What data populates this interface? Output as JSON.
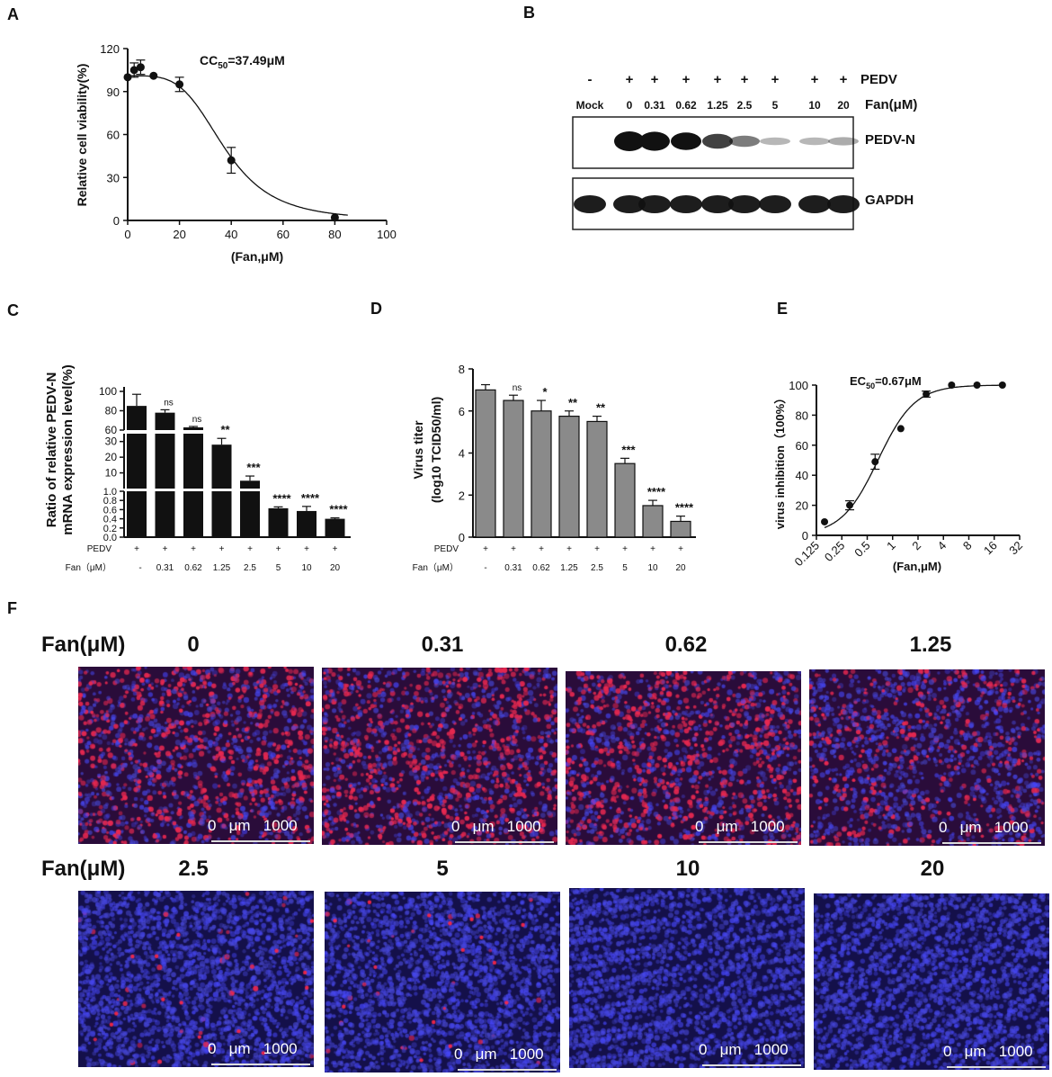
{
  "panels": {
    "A": "A",
    "B": "B",
    "C": "C",
    "D": "D",
    "E": "E",
    "F": "F"
  },
  "chart_data": [
    {
      "panel": "A",
      "type": "scatter",
      "annotation": "CC50=37.49μM",
      "annotation_main": "CC",
      "annotation_sub": "50",
      "annotation_rest": "=37.49μM",
      "xlabel": "(Fan,μM)",
      "ylabel": "Relative cell viability(%)",
      "xlim": [
        0,
        100
      ],
      "ylim": [
        0,
        120
      ],
      "xticks": [
        "0",
        "20",
        "40",
        "60",
        "80",
        "100"
      ],
      "yticks": [
        "0",
        "30",
        "60",
        "90",
        "120"
      ],
      "points": [
        {
          "x": 0,
          "y": 100,
          "err": 0
        },
        {
          "x": 2.5,
          "y": 105,
          "err": 5
        },
        {
          "x": 5,
          "y": 107,
          "err": 5
        },
        {
          "x": 10,
          "y": 101,
          "err": 0
        },
        {
          "x": 20,
          "y": 95,
          "err": 5
        },
        {
          "x": 40,
          "y": 42,
          "err": 9
        },
        {
          "x": 80,
          "y": 2,
          "err": 0
        }
      ],
      "fit": {
        "top": 101,
        "bottom": 0,
        "ic50": 37.49,
        "hill": 4
      }
    },
    {
      "panel": "B",
      "type": "table",
      "row1_label": "PEDV",
      "row2_label": "Fan(μM)",
      "row1_values": [
        "-",
        "+",
        "+",
        "+",
        "+",
        "+",
        "+",
        "+",
        "+"
      ],
      "row2_values": [
        "Mock",
        "0",
        "0.31",
        "0.62",
        "1.25",
        "2.5",
        "5",
        "10",
        "20"
      ],
      "blot1_label": "PEDV-N",
      "blot2_label": "GAPDH",
      "band1_intensity": [
        0,
        1.0,
        0.95,
        0.85,
        0.65,
        0.4,
        0.15,
        0.15,
        0.2
      ],
      "band2_intensity": [
        1,
        1,
        1,
        1,
        1,
        1,
        1,
        1,
        1
      ]
    },
    {
      "panel": "C",
      "type": "bar",
      "ylabel_line1": "Ratio of relative PEDV-N",
      "ylabel_line2": "mRNA expression level(%)",
      "categories": [
        "-",
        "0.31",
        "0.62",
        "1.25",
        "2.5",
        "5",
        "10",
        "20"
      ],
      "pedv": [
        "+",
        "+",
        "+",
        "+",
        "+",
        "+",
        "+",
        "+"
      ],
      "row1_label": "PEDV",
      "row2_label": "Fan（μM）",
      "values": [
        85,
        78,
        50,
        28,
        5,
        0.63,
        0.57,
        0.4
      ],
      "errors": [
        12,
        3,
        5,
        4,
        3,
        0.03,
        0.1,
        0.02
      ],
      "significance": [
        "",
        "ns",
        "ns",
        "**",
        "***",
        "****",
        "****",
        "****"
      ],
      "yticks_top": [
        "60",
        "80",
        "100"
      ],
      "yticks_mid": [
        "10",
        "20",
        "30"
      ],
      "yticks_bot": [
        "0.0",
        "0.2",
        "0.4",
        "0.6",
        "0.8",
        "1.0"
      ]
    },
    {
      "panel": "D",
      "type": "bar",
      "ylabel_line1": "Virus titer",
      "ylabel_line2": "(log10 TCID50/ml)",
      "categories": [
        "-",
        "0.31",
        "0.62",
        "1.25",
        "2.5",
        "5",
        "10",
        "20"
      ],
      "pedv": [
        "+",
        "+",
        "+",
        "+",
        "+",
        "+",
        "+",
        "+"
      ],
      "row1_label": "PEDV",
      "row2_label": "Fan（μM）",
      "values": [
        7.0,
        6.5,
        6.0,
        5.75,
        5.5,
        3.5,
        1.5,
        0.75
      ],
      "errors": [
        0.25,
        0.25,
        0.5,
        0.25,
        0.25,
        0.25,
        0.25,
        0.25
      ],
      "significance": [
        "",
        "ns",
        "*",
        "**",
        "**",
        "***",
        "****",
        "****"
      ],
      "ylim": [
        0,
        8
      ],
      "yticks": [
        "0",
        "2",
        "4",
        "6",
        "8"
      ]
    },
    {
      "panel": "E",
      "type": "scatter",
      "annotation_main": "EC",
      "annotation_sub": "50",
      "annotation_rest": "=0.67μM",
      "xlabel": "(Fan,μM)",
      "ylabel": "virus inhibition（100%）",
      "x_scale": "log2",
      "xticks": [
        "0.125",
        "0.25",
        "0.5",
        "1",
        "2",
        "4",
        "8",
        "16",
        "32"
      ],
      "yticks": [
        "0",
        "20",
        "40",
        "60",
        "80",
        "100"
      ],
      "ylim": [
        0,
        100
      ],
      "points": [
        {
          "x": 0.156,
          "y": 9,
          "err": 0
        },
        {
          "x": 0.31,
          "y": 20,
          "err": 3
        },
        {
          "x": 0.62,
          "y": 49,
          "err": 5
        },
        {
          "x": 1.25,
          "y": 71,
          "err": 0
        },
        {
          "x": 2.5,
          "y": 94,
          "err": 2
        },
        {
          "x": 5,
          "y": 100,
          "err": 0
        },
        {
          "x": 10,
          "y": 100,
          "err": 0
        },
        {
          "x": 20,
          "y": 100,
          "err": 0
        }
      ],
      "fit": {
        "top": 100,
        "bottom": 0,
        "ec50": 0.67,
        "hill": 2
      }
    }
  ],
  "micrographs": {
    "row_label": "Fan(μM)",
    "scale_text": [
      "0",
      "μm",
      "1000"
    ],
    "doses": [
      "0",
      "0.31",
      "0.62",
      "1.25",
      "2.5",
      "5",
      "10",
      "20"
    ],
    "red_intensity": [
      0.9,
      0.85,
      0.9,
      0.45,
      0.03,
      0.02,
      0.0,
      0.0
    ]
  }
}
